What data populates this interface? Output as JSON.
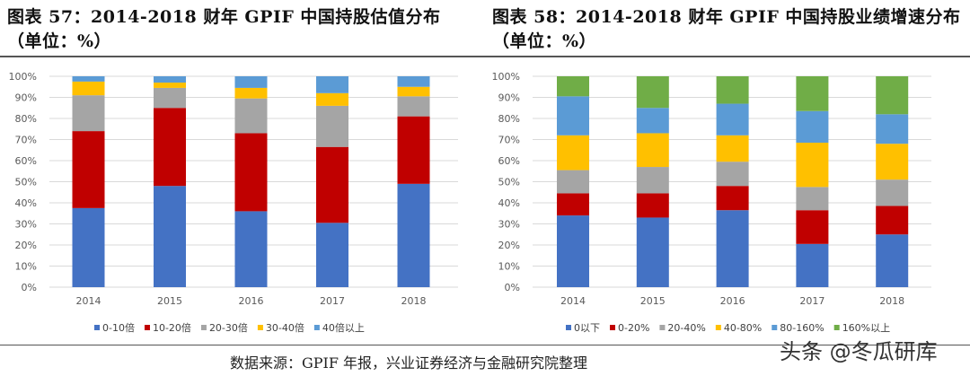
{
  "colors": [
    "#4472C4",
    "#C00000",
    "#A5A5A5",
    "#FFC000",
    "#5B9BD5",
    "#70AD47"
  ],
  "source": "数据来源：GPIF 年报，兴业证券经济与金融研究院整理",
  "watermark": "头条 @冬瓜研库",
  "chart_data": [
    {
      "type": "bar",
      "stacked": true,
      "title": "图表 57：2014-2018 财年 GPIF 中国持股估值分布（单位：%）",
      "categories": [
        "2014",
        "2015",
        "2016",
        "2017",
        "2018"
      ],
      "ylim": [
        0,
        100
      ],
      "yticks": [
        "0%",
        "10%",
        "20%",
        "30%",
        "40%",
        "50%",
        "60%",
        "70%",
        "80%",
        "90%",
        "100%"
      ],
      "grid": true,
      "legend": "bottom",
      "series": [
        {
          "name": "0-10倍",
          "values": [
            37.5,
            48,
            36,
            30.5,
            49
          ]
        },
        {
          "name": "10-20倍",
          "values": [
            36.5,
            37,
            37,
            36,
            32
          ]
        },
        {
          "name": "20-30倍",
          "values": [
            17,
            9.5,
            16.5,
            19.5,
            9.5
          ]
        },
        {
          "name": "30-40倍",
          "values": [
            6.5,
            2.5,
            5,
            6,
            4.5
          ]
        },
        {
          "name": "40倍以上",
          "values": [
            2.5,
            3,
            5.5,
            8,
            5
          ]
        }
      ]
    },
    {
      "type": "bar",
      "stacked": true,
      "title": "图表 58：2014-2018 财年 GPIF 中国持股业绩增速分布（单位：%）",
      "categories": [
        "2014",
        "2015",
        "2016",
        "2017",
        "2018"
      ],
      "ylim": [
        0,
        100
      ],
      "yticks": [
        "0%",
        "10%",
        "20%",
        "30%",
        "40%",
        "50%",
        "60%",
        "70%",
        "80%",
        "90%",
        "100%"
      ],
      "grid": true,
      "legend": "bottom",
      "series": [
        {
          "name": "0以下",
          "values": [
            34,
            33,
            36.5,
            20.5,
            25
          ]
        },
        {
          "name": "0-20%",
          "values": [
            10.5,
            11.5,
            11.5,
            16,
            13.5
          ]
        },
        {
          "name": "20-40%",
          "values": [
            11,
            12.5,
            11.5,
            11,
            12.5
          ]
        },
        {
          "name": "40-80%",
          "values": [
            16.5,
            16,
            12.5,
            21,
            17
          ]
        },
        {
          "name": "80-160%",
          "values": [
            18.5,
            12,
            15,
            15,
            14
          ]
        },
        {
          "name": "160%以上",
          "values": [
            9.5,
            15,
            13,
            16.5,
            18
          ]
        }
      ]
    }
  ]
}
